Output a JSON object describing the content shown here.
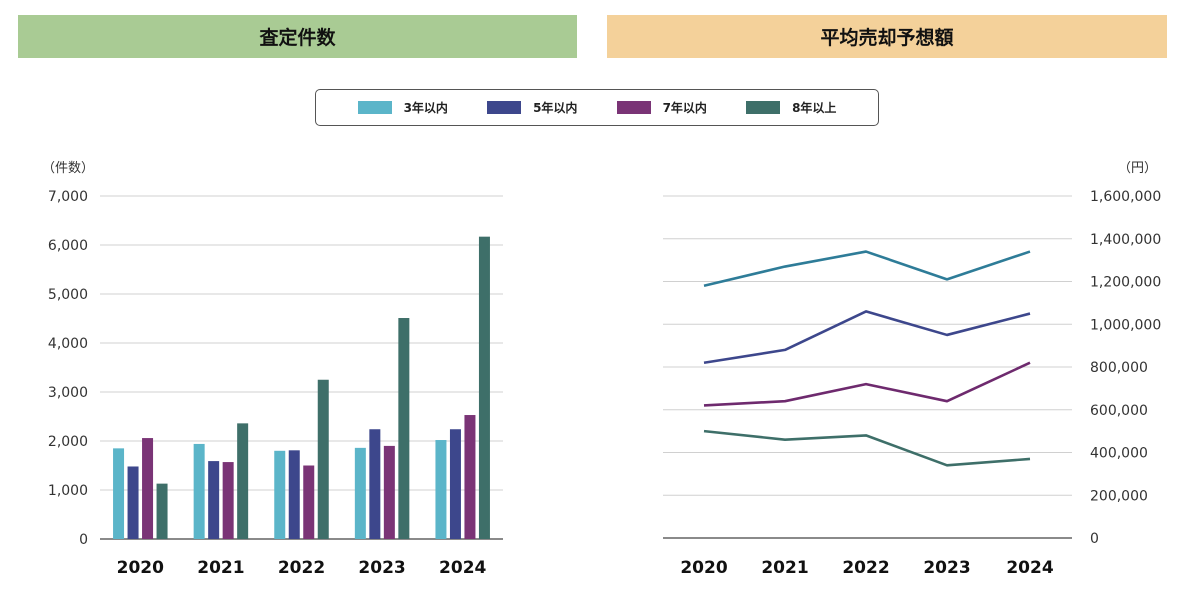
{
  "banners": {
    "left": "査定件数",
    "right": "平均売却予想額"
  },
  "legend": [
    {
      "label": "3年以内",
      "color": "#5bb5c9"
    },
    {
      "label": "5年以内",
      "color": "#3d478c"
    },
    {
      "label": "7年以内",
      "color": "#7a3476"
    },
    {
      "label": "8年以上",
      "color": "#3e6f69"
    }
  ],
  "colors": {
    "left_banner": "#a9cb94",
    "right_banner": "#f4d19a"
  },
  "chart_data": [
    {
      "type": "bar",
      "title": "査定件数",
      "ylabel": "（件数）",
      "categories": [
        "2020",
        "2021",
        "2022",
        "2023",
        "2024"
      ],
      "ylim": [
        0,
        7000
      ],
      "yticks": [
        "0",
        "1,000",
        "2,000",
        "3,000",
        "4,000",
        "5,000",
        "6,000",
        "7,000"
      ],
      "grid": true,
      "series": [
        {
          "name": "3年以内",
          "values": [
            1850,
            1940,
            1800,
            1860,
            2020
          ]
        },
        {
          "name": "5年以内",
          "values": [
            1480,
            1590,
            1810,
            2240,
            2240
          ]
        },
        {
          "name": "7年以内",
          "values": [
            2060,
            1570,
            1500,
            1900,
            2530
          ]
        },
        {
          "name": "8年以上",
          "values": [
            1130,
            2360,
            3250,
            4510,
            6170
          ]
        }
      ]
    },
    {
      "type": "line",
      "title": "平均売却予想額",
      "ylabel": "（円）",
      "categories": [
        "2020",
        "2021",
        "2022",
        "2023",
        "2024"
      ],
      "ylim": [
        0,
        1600000
      ],
      "yticks": [
        "0",
        "200,000",
        "400,000",
        "600,000",
        "800,000",
        "1,000,000",
        "1,200,000",
        "1,400,000",
        "1,600,000"
      ],
      "grid": true,
      "series": [
        {
          "name": "3年以内",
          "values": [
            1180000,
            1270000,
            1340000,
            1210000,
            1340000
          ]
        },
        {
          "name": "5年以内",
          "values": [
            820000,
            880000,
            1060000,
            950000,
            1050000
          ]
        },
        {
          "name": "7年以内",
          "values": [
            620000,
            640000,
            720000,
            640000,
            820000
          ]
        },
        {
          "name": "8年以上",
          "values": [
            500000,
            460000,
            480000,
            340000,
            370000
          ]
        }
      ]
    }
  ]
}
